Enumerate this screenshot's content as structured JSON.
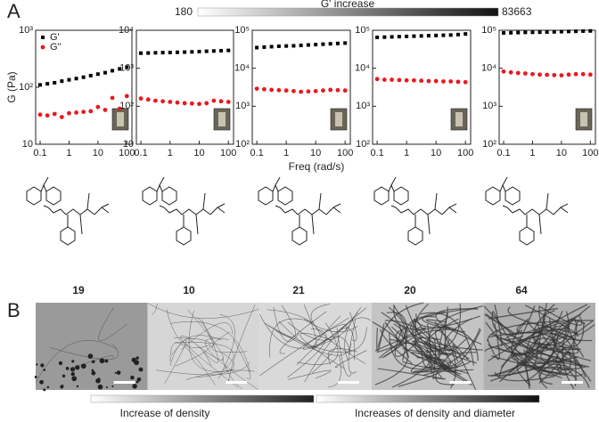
{
  "panel_a": "A",
  "panel_b": "B",
  "top_bar": {
    "min": 180,
    "label": "G' increase",
    "max": 83663
  },
  "y_label": "G (Pa)",
  "x_label": "Freq (rad/s)",
  "compounds": [
    "19",
    "10",
    "21",
    "20",
    "64"
  ],
  "bottom_bar": {
    "left": "Increase of density",
    "right": "Increases of density and diameter"
  },
  "chart_data": [
    {
      "type": "scatter",
      "log_x": true,
      "log_y": true,
      "legend": "upper left",
      "x": [
        0.1,
        0.178,
        0.316,
        0.562,
        1,
        1.78,
        3.16,
        5.62,
        10,
        17.8,
        31.6,
        56.2,
        100
      ],
      "xlim": [
        0.07,
        150
      ],
      "xticks": [
        0.1,
        1,
        10,
        100
      ],
      "ylim": [
        10,
        1000
      ],
      "yticks": [
        10,
        {
          "value": 100,
          "label": "10²"
        },
        {
          "value": 1000,
          "label": "10³"
        }
      ],
      "series": [
        {
          "name": "G'",
          "color": "#000000",
          "marker": "square",
          "values": [
            110,
            115,
            120,
            128,
            135,
            142,
            150,
            160,
            170,
            180,
            195,
            210,
            225
          ]
        },
        {
          "name": "G''",
          "color": "#e8191f",
          "marker": "circle",
          "values": [
            33,
            32,
            34,
            30,
            35,
            36,
            37,
            38,
            45,
            40,
            65,
            42,
            70
          ]
        }
      ]
    },
    {
      "type": "scatter",
      "log_x": true,
      "log_y": true,
      "x": [
        0.1,
        0.178,
        0.316,
        0.562,
        1,
        1.78,
        3.16,
        5.62,
        10,
        17.8,
        31.6,
        56.2,
        100
      ],
      "xlim": [
        0.07,
        150
      ],
      "xticks": [
        0.1,
        1,
        10,
        100
      ],
      "ylim": [
        10,
        10000
      ],
      "yticks": [
        10,
        {
          "value": 100,
          "label": "10²"
        },
        {
          "value": 1000,
          "label": "10³"
        },
        {
          "value": 10000,
          "label": "10⁴"
        }
      ],
      "series": [
        {
          "color": "#000000",
          "marker": "square",
          "values": [
            2500,
            2520,
            2550,
            2580,
            2600,
            2630,
            2660,
            2700,
            2750,
            2800,
            2850,
            2900,
            2950
          ]
        },
        {
          "color": "#e8191f",
          "marker": "circle",
          "values": [
            160,
            150,
            140,
            135,
            130,
            125,
            120,
            118,
            115,
            120,
            140,
            135,
            130
          ]
        }
      ]
    },
    {
      "type": "scatter",
      "log_x": true,
      "log_y": true,
      "x": [
        0.1,
        0.178,
        0.316,
        0.562,
        1,
        1.78,
        3.16,
        5.62,
        10,
        17.8,
        31.6,
        56.2,
        100
      ],
      "xlim": [
        0.07,
        150
      ],
      "xticks": [
        0.1,
        1,
        10,
        100
      ],
      "ylim": [
        100,
        100000
      ],
      "yticks": [
        {
          "value": 100,
          "label": "10²"
        },
        {
          "value": 1000,
          "label": "10³"
        },
        {
          "value": 10000,
          "label": "10⁴"
        },
        {
          "value": 100000,
          "label": "10⁵"
        }
      ],
      "series": [
        {
          "color": "#000000",
          "marker": "square",
          "values": [
            35000,
            36000,
            37000,
            38000,
            38500,
            39000,
            40000,
            41000,
            42000,
            43000,
            44000,
            45000,
            46000
          ]
        },
        {
          "color": "#e8191f",
          "marker": "circle",
          "values": [
            2900,
            2800,
            2700,
            2650,
            2600,
            2500,
            2400,
            2450,
            2500,
            2600,
            2700,
            2650,
            2600
          ]
        }
      ]
    },
    {
      "type": "scatter",
      "log_x": true,
      "log_y": true,
      "x": [
        0.1,
        0.178,
        0.316,
        0.562,
        1,
        1.78,
        3.16,
        5.62,
        10,
        17.8,
        31.6,
        56.2,
        100
      ],
      "xlim": [
        0.07,
        150
      ],
      "xticks": [
        0.1,
        1,
        10,
        100
      ],
      "ylim": [
        100,
        100000
      ],
      "yticks": [
        {
          "value": 100,
          "label": "10²"
        },
        {
          "value": 1000,
          "label": "10³"
        },
        {
          "value": 10000,
          "label": "10⁴"
        },
        {
          "value": 100000,
          "label": "10⁵"
        }
      ],
      "series": [
        {
          "color": "#000000",
          "marker": "square",
          "values": [
            65000,
            66000,
            67000,
            68000,
            69000,
            70000,
            71000,
            72000,
            73000,
            74000,
            75000,
            77000,
            80000
          ]
        },
        {
          "color": "#e8191f",
          "marker": "circle",
          "values": [
            5200,
            5000,
            5000,
            4900,
            4800,
            4800,
            4700,
            4600,
            4600,
            4500,
            4500,
            4400,
            4300
          ]
        }
      ]
    },
    {
      "type": "scatter",
      "log_x": true,
      "log_y": true,
      "x": [
        0.1,
        0.178,
        0.316,
        0.562,
        1,
        1.78,
        3.16,
        5.62,
        10,
        17.8,
        31.6,
        56.2,
        100
      ],
      "xlim": [
        0.07,
        150
      ],
      "xticks": [
        0.1,
        1,
        10,
        100
      ],
      "ylim": [
        100,
        100000
      ],
      "yticks": [
        {
          "value": 100,
          "label": "10²"
        },
        {
          "value": 1000,
          "label": "10³"
        },
        {
          "value": 10000,
          "label": "10⁴"
        },
        {
          "value": 100000,
          "label": "10⁵"
        }
      ],
      "series": [
        {
          "color": "#000000",
          "marker": "square",
          "values": [
            85000,
            86000,
            87000,
            88000,
            88500,
            89000,
            90000,
            91000,
            92000,
            93000,
            94000,
            95000,
            96000
          ]
        },
        {
          "color": "#e8191f",
          "marker": "circle",
          "values": [
            8200,
            7800,
            7500,
            7300,
            7000,
            6800,
            6700,
            6600,
            6500,
            6800,
            7000,
            7000,
            6800
          ]
        }
      ]
    }
  ]
}
